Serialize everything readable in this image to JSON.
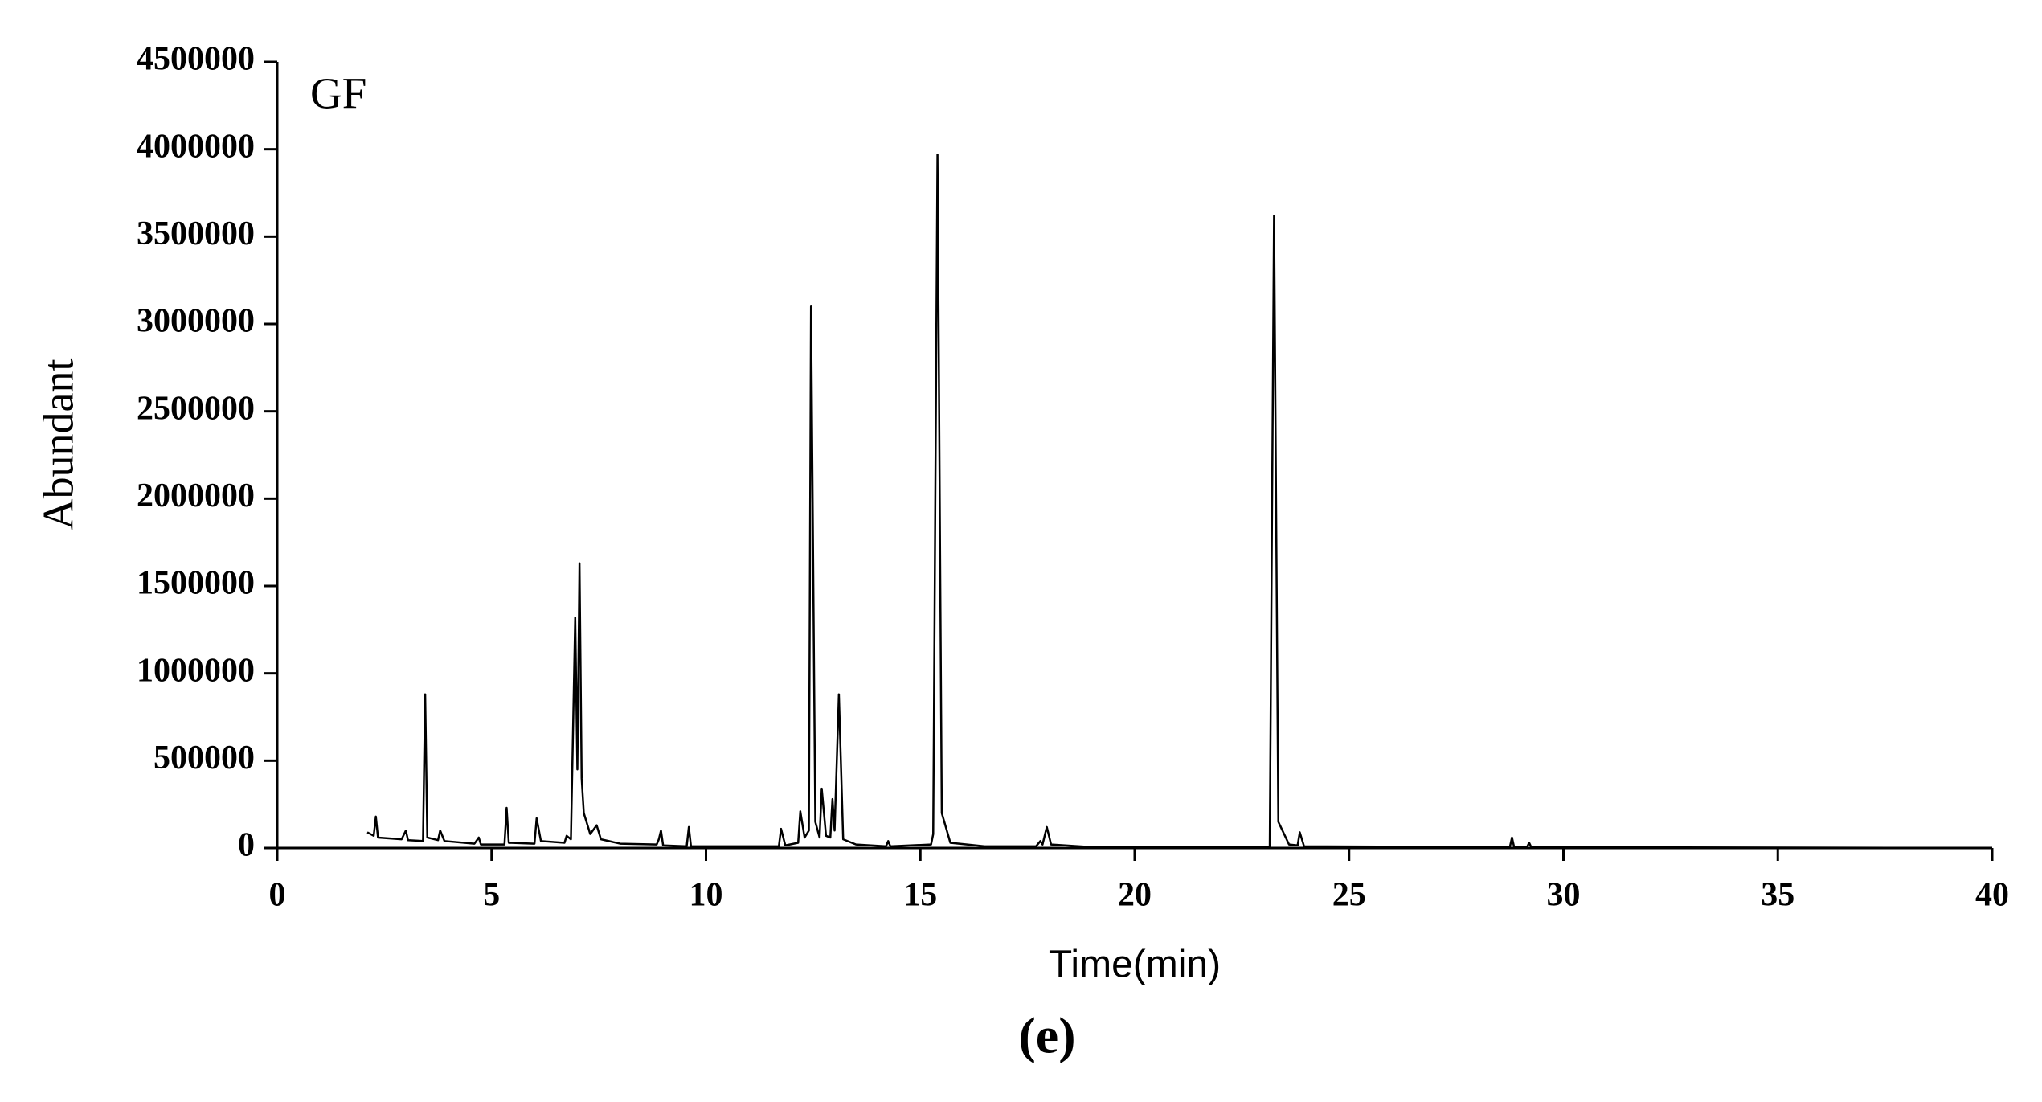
{
  "chart_data": {
    "type": "line",
    "annotations": [
      "GF",
      "(e)"
    ],
    "xlabel": "Time(min)",
    "ylabel": "Abundant",
    "xlim": [
      0,
      40
    ],
    "xticks": [
      0,
      5,
      10,
      15,
      20,
      25,
      30,
      35,
      40
    ],
    "ylim": [
      0,
      4500000
    ],
    "yticks": [
      0,
      500000,
      1000000,
      1500000,
      2000000,
      2500000,
      3000000,
      3500000,
      4000000,
      4500000
    ],
    "series": [
      {
        "color": "#000000",
        "x": [
          2.1,
          2.25,
          2.3,
          2.35,
          2.9,
          3.0,
          3.05,
          3.4,
          3.45,
          3.5,
          3.75,
          3.8,
          3.9,
          4.6,
          4.7,
          4.75,
          5.3,
          5.35,
          5.4,
          6.0,
          6.05,
          6.15,
          6.7,
          6.75,
          6.85,
          6.95,
          7.0,
          7.05,
          7.1,
          7.15,
          7.3,
          7.45,
          7.55,
          8.0,
          8.85,
          8.9,
          8.95,
          9.0,
          9.55,
          9.6,
          9.65,
          11.7,
          11.75,
          11.85,
          12.15,
          12.2,
          12.3,
          12.4,
          12.45,
          12.55,
          12.65,
          12.7,
          12.8,
          12.9,
          12.95,
          13.0,
          13.1,
          13.2,
          13.5,
          14.2,
          14.25,
          14.3,
          15.25,
          15.3,
          15.4,
          15.5,
          15.7,
          16.5,
          17.7,
          17.8,
          17.85,
          17.95,
          18.05,
          19,
          23.15,
          23.25,
          23.35,
          23.6,
          23.8,
          23.85,
          23.95,
          28.75,
          28.8,
          28.85,
          29.15,
          29.2,
          29.25,
          40
        ],
        "values": [
          90000,
          70000,
          180000,
          60000,
          50000,
          100000,
          45000,
          40000,
          880000,
          60000,
          45000,
          100000,
          40000,
          25000,
          60000,
          20000,
          20000,
          230000,
          30000,
          25000,
          170000,
          40000,
          30000,
          70000,
          50000,
          1320000,
          450000,
          1630000,
          400000,
          200000,
          80000,
          130000,
          50000,
          25000,
          20000,
          50000,
          100000,
          15000,
          10000,
          120000,
          10000,
          10000,
          110000,
          15000,
          30000,
          210000,
          60000,
          100000,
          3100000,
          150000,
          60000,
          340000,
          70000,
          60000,
          280000,
          100000,
          880000,
          50000,
          20000,
          10000,
          40000,
          10000,
          20000,
          80000,
          3970000,
          200000,
          30000,
          10000,
          10000,
          40000,
          20000,
          120000,
          20000,
          5000,
          5000,
          3620000,
          150000,
          20000,
          15000,
          90000,
          10000,
          5000,
          60000,
          5000,
          5000,
          30000,
          5000,
          0
        ]
      }
    ]
  }
}
